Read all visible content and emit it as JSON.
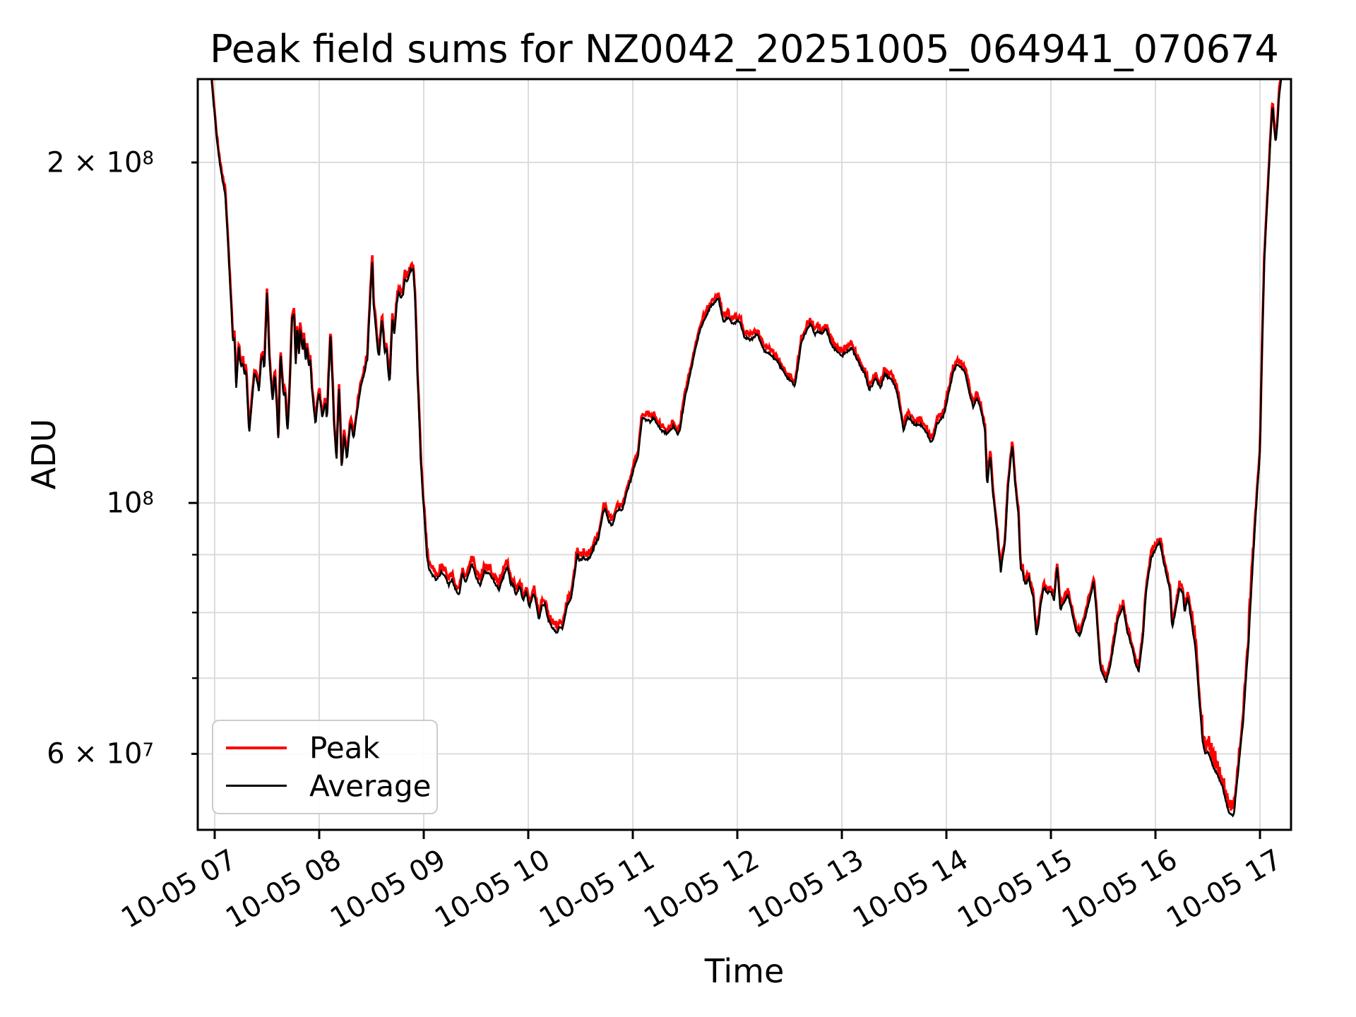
{
  "page": {
    "background": "#ffffff"
  },
  "chart_data": {
    "type": "line",
    "title": "Peak field sums for NZ0042_20251005_064941_070674",
    "xlabel": "Time",
    "ylabel": "ADU",
    "grid": true,
    "legend_position": "lower-left",
    "colors": {
      "peak": "#ff0000",
      "average": "#000000",
      "grid": "#dcdcdc",
      "spine": "#000000",
      "legend_border": "#cccccc"
    },
    "x_axis": {
      "unit": "hours on 10-05",
      "lim": [
        6.838,
        17.297
      ],
      "ticks": [
        {
          "hour": 7,
          "label": "10-05 07"
        },
        {
          "hour": 8,
          "label": "10-05 08"
        },
        {
          "hour": 9,
          "label": "10-05 09"
        },
        {
          "hour": 10,
          "label": "10-05 10"
        },
        {
          "hour": 11,
          "label": "10-05 11"
        },
        {
          "hour": 12,
          "label": "10-05 12"
        },
        {
          "hour": 13,
          "label": "10-05 13"
        },
        {
          "hour": 14,
          "label": "10-05 14"
        },
        {
          "hour": 15,
          "label": "10-05 15"
        },
        {
          "hour": 16,
          "label": "10-05 16"
        },
        {
          "hour": 17,
          "label": "10-05 17"
        }
      ]
    },
    "y_axis": {
      "scale": "log",
      "lim": [
        51400000,
        237000000
      ],
      "labeled_ticks": [
        {
          "value": 200000000,
          "mantissa": "2 × 10",
          "exp": "8"
        },
        {
          "value": 100000000,
          "mantissa": "10",
          "exp": "8"
        },
        {
          "value": 60000000,
          "mantissa": "6 × 10",
          "exp": "7"
        }
      ],
      "minor_ticks": [
        90000000,
        80000000,
        70000000
      ]
    },
    "series": [
      {
        "name": "Peak",
        "color": "#ff0000",
        "linewidth": 3.5
      },
      {
        "name": "Average",
        "color": "#000000",
        "linewidth": 2.6
      }
    ],
    "value_scale": 10000000,
    "average_series": [
      [
        6.9,
        27.5
      ],
      [
        6.95,
        25.0
      ],
      [
        6.985,
        22.8
      ],
      [
        7.02,
        21.0
      ],
      [
        7.05,
        19.9
      ],
      [
        7.075,
        19.3
      ],
      [
        7.1,
        18.8
      ],
      [
        7.125,
        17.2
      ],
      [
        7.14,
        16.1
      ],
      [
        7.155,
        15.15
      ],
      [
        7.175,
        13.9
      ],
      [
        7.19,
        14.0
      ],
      [
        7.205,
        12.6
      ],
      [
        7.23,
        13.7
      ],
      [
        7.25,
        13.2
      ],
      [
        7.27,
        13.3
      ],
      [
        7.285,
        13.0
      ],
      [
        7.3,
        13.1
      ],
      [
        7.33,
        11.5
      ],
      [
        7.38,
        13.0
      ],
      [
        7.4,
        12.9
      ],
      [
        7.425,
        12.55
      ],
      [
        7.445,
        13.4
      ],
      [
        7.46,
        13.5
      ],
      [
        7.475,
        13.1
      ],
      [
        7.5,
        15.3
      ],
      [
        7.51,
        14.6
      ],
      [
        7.525,
        13.3
      ],
      [
        7.545,
        12.6
      ],
      [
        7.555,
        12.3
      ],
      [
        7.575,
        13.05
      ],
      [
        7.595,
        12.15
      ],
      [
        7.61,
        11.3
      ],
      [
        7.63,
        13.6
      ],
      [
        7.645,
        12.9
      ],
      [
        7.66,
        12.4
      ],
      [
        7.675,
        12.55
      ],
      [
        7.69,
        11.75
      ],
      [
        7.7,
        11.6
      ],
      [
        7.72,
        12.8
      ],
      [
        7.74,
        14.55
      ],
      [
        7.76,
        14.7
      ],
      [
        7.775,
        13.2
      ],
      [
        7.79,
        14.35
      ],
      [
        7.805,
        13.5
      ],
      [
        7.82,
        14.3
      ],
      [
        7.84,
        13.6
      ],
      [
        7.855,
        14.0
      ],
      [
        7.87,
        13.3
      ],
      [
        7.885,
        13.75
      ],
      [
        7.9,
        13.2
      ],
      [
        7.915,
        13.4
      ],
      [
        7.93,
        12.6
      ],
      [
        7.95,
        12.1
      ],
      [
        7.965,
        11.7
      ],
      [
        7.98,
        12.2
      ],
      [
        8.0,
        12.5
      ],
      [
        8.03,
        11.9
      ],
      [
        8.06,
        12.3
      ],
      [
        8.074,
        11.8
      ],
      [
        8.108,
        14.15
      ],
      [
        8.142,
        11.75
      ],
      [
        8.165,
        10.9
      ],
      [
        8.19,
        12.6
      ],
      [
        8.215,
        10.7
      ],
      [
        8.24,
        11.5
      ],
      [
        8.265,
        10.9
      ],
      [
        8.3,
        11.8
      ],
      [
        8.33,
        11.4
      ],
      [
        8.36,
        12.0
      ],
      [
        8.4,
        12.7
      ],
      [
        8.43,
        13.0
      ],
      [
        8.46,
        13.4
      ],
      [
        8.49,
        15.3
      ],
      [
        8.507,
        16.4
      ],
      [
        8.52,
        15.0
      ],
      [
        8.545,
        14.2
      ],
      [
        8.56,
        13.6
      ],
      [
        8.575,
        13.5
      ],
      [
        8.6,
        14.6
      ],
      [
        8.625,
        13.6
      ],
      [
        8.645,
        13.7
      ],
      [
        8.665,
        12.9
      ],
      [
        8.675,
        12.8
      ],
      [
        8.7,
        14.55
      ],
      [
        8.72,
        14.1
      ],
      [
        8.745,
        15.1
      ],
      [
        8.76,
        15.35
      ],
      [
        8.78,
        15.2
      ],
      [
        8.8,
        15.25
      ],
      [
        8.82,
        15.8
      ],
      [
        8.84,
        15.7
      ],
      [
        8.87,
        16.05
      ],
      [
        8.9,
        16.1
      ],
      [
        8.92,
        15.0
      ],
      [
        8.94,
        13.0
      ],
      [
        8.97,
        11.0
      ],
      [
        8.99,
        10.2
      ],
      [
        9.01,
        9.6
      ],
      [
        9.03,
        9.0
      ],
      [
        9.05,
        8.75
      ],
      [
        9.07,
        8.68
      ],
      [
        9.12,
        8.55
      ],
      [
        9.17,
        8.68
      ],
      [
        9.21,
        8.6
      ],
      [
        9.24,
        8.45
      ],
      [
        9.27,
        8.55
      ],
      [
        9.3,
        8.4
      ],
      [
        9.34,
        8.3
      ],
      [
        9.37,
        8.67
      ],
      [
        9.4,
        8.5
      ],
      [
        9.43,
        8.65
      ],
      [
        9.46,
        8.85
      ],
      [
        9.5,
        8.6
      ],
      [
        9.54,
        8.45
      ],
      [
        9.58,
        8.7
      ],
      [
        9.62,
        8.67
      ],
      [
        9.65,
        8.6
      ],
      [
        9.68,
        8.5
      ],
      [
        9.72,
        8.38
      ],
      [
        9.76,
        8.6
      ],
      [
        9.8,
        8.78
      ],
      [
        9.83,
        8.5
      ],
      [
        9.86,
        8.45
      ],
      [
        9.88,
        8.28
      ],
      [
        9.92,
        8.45
      ],
      [
        9.95,
        8.2
      ],
      [
        9.98,
        8.35
      ],
      [
        10.01,
        8.09
      ],
      [
        10.05,
        8.3
      ],
      [
        10.07,
        8.2
      ],
      [
        10.1,
        7.88
      ],
      [
        10.13,
        8.1
      ],
      [
        10.16,
        8.14
      ],
      [
        10.19,
        7.9
      ],
      [
        10.22,
        7.78
      ],
      [
        10.25,
        7.72
      ],
      [
        10.27,
        7.67
      ],
      [
        10.3,
        7.78
      ],
      [
        10.33,
        7.75
      ],
      [
        10.37,
        8.11
      ],
      [
        10.41,
        8.24
      ],
      [
        10.44,
        8.6
      ],
      [
        10.47,
        9.03
      ],
      [
        10.49,
        8.88
      ],
      [
        10.53,
        8.95
      ],
      [
        10.56,
        8.9
      ],
      [
        10.59,
        8.95
      ],
      [
        10.64,
        9.2
      ],
      [
        10.67,
        9.3
      ],
      [
        10.72,
        9.84
      ],
      [
        10.74,
        9.86
      ],
      [
        10.77,
        9.63
      ],
      [
        10.8,
        9.55
      ],
      [
        10.84,
        9.81
      ],
      [
        10.87,
        9.88
      ],
      [
        10.9,
        9.85
      ],
      [
        10.94,
        10.22
      ],
      [
        10.98,
        10.47
      ],
      [
        11.01,
        10.73
      ],
      [
        11.05,
        11.0
      ],
      [
        11.09,
        11.9
      ],
      [
        11.13,
        11.85
      ],
      [
        11.17,
        11.8
      ],
      [
        11.2,
        11.9
      ],
      [
        11.23,
        11.75
      ],
      [
        11.27,
        11.6
      ],
      [
        11.31,
        11.55
      ],
      [
        11.33,
        11.5
      ],
      [
        11.39,
        11.7
      ],
      [
        11.43,
        11.5
      ],
      [
        11.45,
        11.6
      ],
      [
        11.5,
        12.4
      ],
      [
        11.55,
        13.0
      ],
      [
        11.6,
        13.7
      ],
      [
        11.65,
        14.3
      ],
      [
        11.7,
        14.6
      ],
      [
        11.74,
        14.9
      ],
      [
        11.78,
        15.05
      ],
      [
        11.82,
        15.16
      ],
      [
        11.85,
        14.7
      ],
      [
        11.87,
        14.45
      ],
      [
        11.91,
        14.6
      ],
      [
        11.95,
        14.4
      ],
      [
        12.02,
        14.5
      ],
      [
        12.07,
        14.0
      ],
      [
        12.14,
        13.95
      ],
      [
        12.19,
        14.1
      ],
      [
        12.26,
        13.6
      ],
      [
        12.31,
        13.55
      ],
      [
        12.38,
        13.35
      ],
      [
        12.43,
        13.1
      ],
      [
        12.48,
        12.9
      ],
      [
        12.55,
        12.7
      ],
      [
        12.58,
        13.2
      ],
      [
        12.61,
        13.85
      ],
      [
        12.66,
        14.2
      ],
      [
        12.7,
        14.4
      ],
      [
        12.74,
        14.1
      ],
      [
        12.77,
        14.2
      ],
      [
        12.81,
        14.1
      ],
      [
        12.85,
        14.25
      ],
      [
        12.9,
        13.8
      ],
      [
        12.94,
        13.65
      ],
      [
        13.0,
        13.5
      ],
      [
        13.07,
        13.65
      ],
      [
        13.1,
        13.7
      ],
      [
        13.12,
        13.55
      ],
      [
        13.18,
        13.2
      ],
      [
        13.22,
        13.0
      ],
      [
        13.26,
        12.6
      ],
      [
        13.29,
        12.7
      ],
      [
        13.32,
        12.9
      ],
      [
        13.37,
        12.65
      ],
      [
        13.41,
        13.0
      ],
      [
        13.45,
        12.9
      ],
      [
        13.48,
        12.85
      ],
      [
        13.52,
        12.6
      ],
      [
        13.55,
        12.2
      ],
      [
        13.59,
        11.6
      ],
      [
        13.63,
        11.9
      ],
      [
        13.66,
        11.85
      ],
      [
        13.7,
        11.7
      ],
      [
        13.74,
        11.75
      ],
      [
        13.78,
        11.65
      ],
      [
        13.82,
        11.5
      ],
      [
        13.85,
        11.3
      ],
      [
        13.88,
        11.45
      ],
      [
        13.91,
        11.75
      ],
      [
        13.96,
        11.9
      ],
      [
        13.98,
        12.0
      ],
      [
        14.03,
        12.6
      ],
      [
        14.07,
        13.1
      ],
      [
        14.11,
        13.25
      ],
      [
        14.18,
        13.05
      ],
      [
        14.22,
        12.5
      ],
      [
        14.26,
        12.15
      ],
      [
        14.29,
        12.4
      ],
      [
        14.33,
        12.1
      ],
      [
        14.35,
        11.85
      ],
      [
        14.37,
        11.55
      ],
      [
        14.39,
        10.35
      ],
      [
        14.42,
        11.05
      ],
      [
        14.44,
        10.3
      ],
      [
        14.47,
        9.74
      ],
      [
        14.51,
        8.9
      ],
      [
        14.52,
        8.7
      ],
      [
        14.54,
        8.97
      ],
      [
        14.56,
        9.2
      ],
      [
        14.59,
        10.35
      ],
      [
        14.63,
        11.25
      ],
      [
        14.66,
        10.35
      ],
      [
        14.69,
        9.74
      ],
      [
        14.71,
        8.75
      ],
      [
        14.73,
        8.7
      ],
      [
        14.74,
        8.56
      ],
      [
        14.76,
        8.47
      ],
      [
        14.79,
        8.58
      ],
      [
        14.8,
        8.44
      ],
      [
        14.83,
        8.28
      ],
      [
        14.86,
        7.64
      ],
      [
        14.88,
        7.8
      ],
      [
        14.9,
        8.1
      ],
      [
        14.93,
        8.42
      ],
      [
        14.97,
        8.32
      ],
      [
        15.0,
        8.35
      ],
      [
        15.03,
        8.2
      ],
      [
        15.06,
        8.77
      ],
      [
        15.09,
        8.05
      ],
      [
        15.13,
        8.18
      ],
      [
        15.16,
        8.3
      ],
      [
        15.19,
        8.1
      ],
      [
        15.22,
        7.87
      ],
      [
        15.24,
        7.7
      ],
      [
        15.28,
        7.65
      ],
      [
        15.33,
        7.94
      ],
      [
        15.37,
        8.2
      ],
      [
        15.41,
        8.52
      ],
      [
        15.44,
        7.9
      ],
      [
        15.47,
        7.17
      ],
      [
        15.5,
        7.05
      ],
      [
        15.53,
        6.94
      ],
      [
        15.57,
        7.2
      ],
      [
        15.61,
        7.6
      ],
      [
        15.64,
        7.9
      ],
      [
        15.69,
        8.1
      ],
      [
        15.73,
        7.7
      ],
      [
        15.78,
        7.43
      ],
      [
        15.81,
        7.2
      ],
      [
        15.84,
        7.1
      ],
      [
        15.88,
        7.6
      ],
      [
        15.91,
        8.35
      ],
      [
        15.96,
        8.94
      ],
      [
        16.0,
        9.1
      ],
      [
        16.04,
        9.25
      ],
      [
        16.09,
        8.77
      ],
      [
        16.14,
        8.35
      ],
      [
        16.16,
        7.75
      ],
      [
        16.2,
        8.1
      ],
      [
        16.23,
        8.4
      ],
      [
        16.26,
        8.35
      ],
      [
        16.28,
        8.0
      ],
      [
        16.31,
        8.26
      ],
      [
        16.38,
        7.46
      ],
      [
        16.41,
        6.88
      ],
      [
        16.45,
        6.16
      ],
      [
        16.48,
        5.98
      ],
      [
        16.5,
        6.04
      ],
      [
        16.55,
        5.86
      ],
      [
        16.59,
        5.75
      ],
      [
        16.64,
        5.62
      ],
      [
        16.7,
        5.33
      ],
      [
        16.75,
        5.3
      ],
      [
        16.8,
        5.9
      ],
      [
        16.84,
        6.43
      ],
      [
        16.89,
        7.5
      ],
      [
        16.92,
        8.47
      ],
      [
        16.95,
        9.47
      ],
      [
        17.0,
        11.1
      ],
      [
        17.04,
        16.25
      ],
      [
        17.07,
        18.5
      ],
      [
        17.09,
        20.1
      ],
      [
        17.12,
        22.55
      ],
      [
        17.135,
        21.5
      ],
      [
        17.15,
        20.8
      ],
      [
        17.17,
        21.8
      ],
      [
        17.18,
        22.8
      ],
      [
        17.21,
        24.0
      ],
      [
        17.26,
        27.0
      ]
    ],
    "peak_relation": {
      "base": "average",
      "offset_frac": 0.005,
      "fringe_frac": 0.014,
      "boosts": [
        {
          "from": 16.35,
          "to": 16.95,
          "amp": 0.024
        },
        {
          "from": 9.0,
          "to": 10.6,
          "amp": 0.006
        }
      ]
    },
    "noise": {
      "seed": 42,
      "average_frac": 0.0035,
      "sample_step_hours": 0.006
    }
  }
}
